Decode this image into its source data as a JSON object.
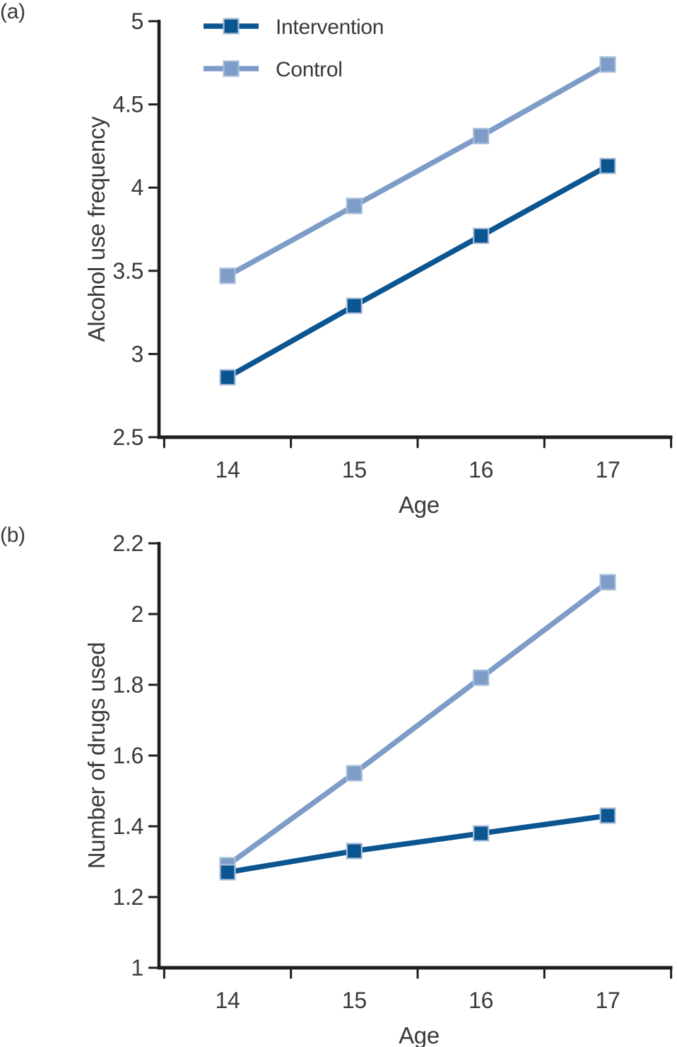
{
  "figure": {
    "background": "#ffffff",
    "description": "Two stacked line charts comparing Intervention and Control groups by age"
  },
  "colors": {
    "intervention": "#0b5591",
    "control": "#7d9cc8",
    "marker_outline": "#a9bdd9",
    "axis": "#1d1d1b",
    "text": "#3a3a39"
  },
  "chart_data": [
    {
      "type": "line",
      "panel_label": "(a)",
      "x": [
        14,
        15,
        16,
        17
      ],
      "xtick_labels": [
        "14",
        "15",
        "16",
        "17"
      ],
      "xlabel": "Age",
      "ylabel": "Alcohol use frequency",
      "ylim": [
        2.5,
        5
      ],
      "yticks": [
        5,
        4.5,
        4,
        3.5,
        3,
        2.5
      ],
      "ytick_labels": [
        "5",
        "4.5",
        "4",
        "3.5",
        "3",
        "2.5"
      ],
      "grid": false,
      "legend": true,
      "legend_position": "top-left-inside",
      "series": [
        {
          "name": "Intervention",
          "color": "#0b5591",
          "marker": "square",
          "values": [
            2.86,
            3.29,
            3.71,
            4.13
          ]
        },
        {
          "name": "Control",
          "color": "#7d9cc8",
          "marker": "square",
          "values": [
            3.47,
            3.89,
            4.31,
            4.74
          ]
        }
      ]
    },
    {
      "type": "line",
      "panel_label": "(b)",
      "x": [
        14,
        15,
        16,
        17
      ],
      "xtick_labels": [
        "14",
        "15",
        "16",
        "17"
      ],
      "xlabel": "Age",
      "ylabel": "Number of drugs used",
      "ylim": [
        1,
        2.2
      ],
      "yticks": [
        2.2,
        2,
        1.8,
        1.6,
        1.4,
        1.2,
        1
      ],
      "ytick_labels": [
        "2.2",
        "2",
        "1.8",
        "1.6",
        "1.4",
        "1.2",
        "1"
      ],
      "grid": false,
      "legend": false,
      "series": [
        {
          "name": "Intervention",
          "color": "#0b5591",
          "marker": "square",
          "values": [
            1.27,
            1.33,
            1.38,
            1.43
          ]
        },
        {
          "name": "Control",
          "color": "#7d9cc8",
          "marker": "square",
          "values": [
            1.29,
            1.55,
            1.82,
            2.09
          ]
        }
      ]
    }
  ]
}
